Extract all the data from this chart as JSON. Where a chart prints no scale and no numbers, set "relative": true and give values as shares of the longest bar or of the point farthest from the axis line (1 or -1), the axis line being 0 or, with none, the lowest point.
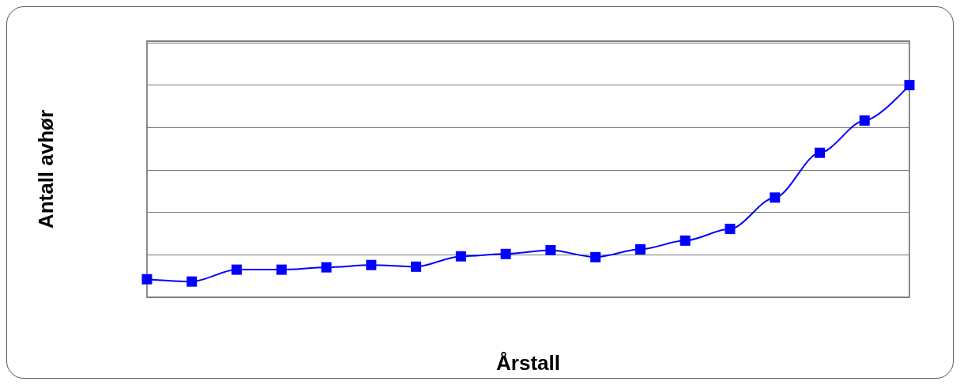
{
  "chart_data": {
    "type": "line",
    "xlabel": "Årstall",
    "ylabel": "Antall avhør",
    "relative": true,
    "categories": [
      null,
      null,
      null,
      null,
      null,
      null,
      null,
      null,
      null,
      null,
      null,
      null,
      null,
      null,
      null,
      null,
      null,
      null
    ],
    "series": [
      {
        "color": "#0000ff",
        "values": [
          0.085,
          0.074,
          0.13,
          0.13,
          0.141,
          0.152,
          0.144,
          0.193,
          0.204,
          0.222,
          0.189,
          0.226,
          0.267,
          0.322,
          0.47,
          0.681,
          0.833,
          1
        ]
      }
    ],
    "grid": "y",
    "marker": "square",
    "line_style": "solid"
  }
}
